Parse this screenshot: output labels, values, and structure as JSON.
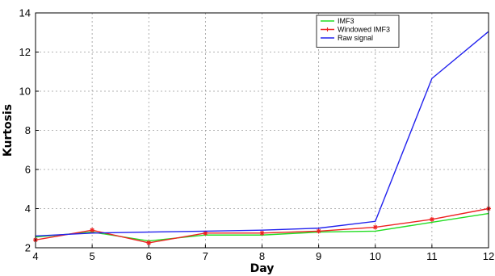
{
  "chart_data": {
    "type": "line",
    "xlabel": "Day",
    "ylabel": "Kurtosis",
    "xlim": [
      4,
      12
    ],
    "ylim": [
      2,
      14
    ],
    "x_ticks": [
      "4",
      "5",
      "6",
      "7",
      "8",
      "9",
      "10",
      "11",
      "12"
    ],
    "y_ticks": [
      "2",
      "4",
      "6",
      "8",
      "10",
      "12",
      "14"
    ],
    "grid": true,
    "legend_position": "top-right",
    "x": [
      4,
      5,
      6,
      7,
      8,
      9,
      10,
      11,
      12
    ],
    "series": [
      {
        "name": "IMF3",
        "color": "#22dd22",
        "marker": "none",
        "values": [
          2.55,
          2.8,
          2.35,
          2.65,
          2.65,
          2.8,
          2.85,
          3.3,
          3.75
        ]
      },
      {
        "name": "Windowed IMF3",
        "color": "#ee2222",
        "marker": "asterisk",
        "values": [
          2.4,
          2.9,
          2.25,
          2.75,
          2.75,
          2.85,
          3.05,
          3.45,
          4.0
        ]
      },
      {
        "name": "Raw signal",
        "color": "#2222ee",
        "marker": "none",
        "values": [
          2.6,
          2.75,
          2.8,
          2.85,
          2.9,
          3.0,
          3.35,
          10.65,
          13.05
        ]
      }
    ]
  }
}
